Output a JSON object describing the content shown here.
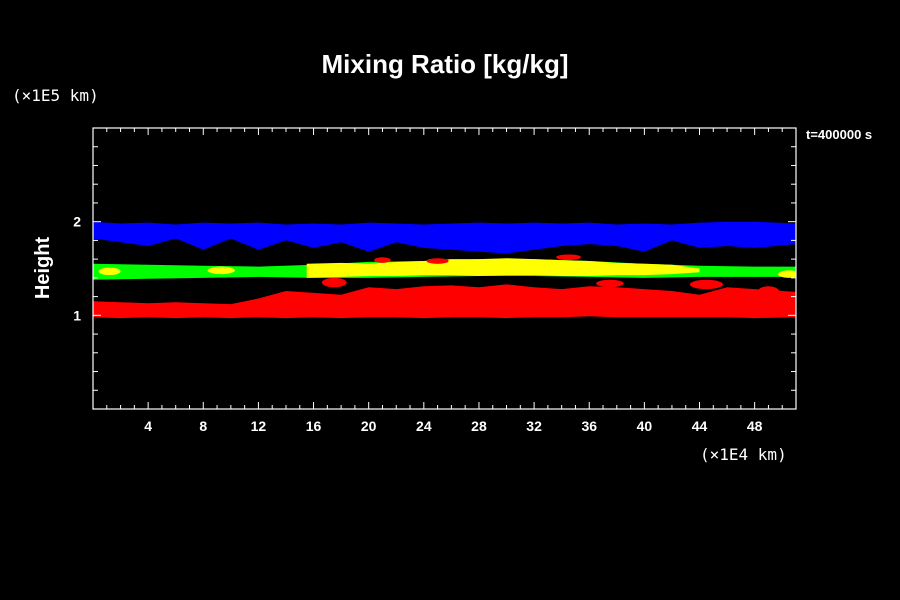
{
  "chart_data": {
    "type": "heatmap",
    "title": "Mixing Ratio [kg/kg]",
    "x_unit": "(×1E4 km)",
    "y_unit": "(×1E5 km)",
    "ylabel": "Height",
    "xlabel": "",
    "time_label": "t=400000 s",
    "xlim": [
      0,
      51
    ],
    "ylim": [
      0,
      3
    ],
    "x_ticks": [
      4,
      8,
      12,
      16,
      20,
      24,
      28,
      32,
      36,
      40,
      44,
      48
    ],
    "y_ticks": [
      1,
      2
    ],
    "grid": false,
    "legend": "none",
    "colors": {
      "background": "#000000",
      "axis": "#ffffff",
      "blue": "#0000ff",
      "green": "#00ff00",
      "yellow": "#ffff00",
      "red": "#ff0000"
    },
    "layers": [
      {
        "color": "blue",
        "x": [
          0,
          2,
          4,
          6,
          8,
          10,
          12,
          14,
          16,
          18,
          20,
          22,
          24,
          26,
          28,
          30,
          32,
          34,
          36,
          38,
          40,
          42,
          44,
          46,
          48,
          51
        ],
        "top": [
          2.0,
          1.98,
          1.99,
          1.97,
          1.99,
          1.98,
          1.99,
          1.97,
          1.98,
          1.97,
          1.99,
          1.98,
          1.97,
          1.98,
          1.99,
          1.98,
          1.99,
          1.98,
          1.99,
          1.97,
          1.98,
          1.97,
          1.99,
          2.0,
          2.0,
          1.98
        ],
        "bottom": [
          1.82,
          1.78,
          1.74,
          1.82,
          1.7,
          1.82,
          1.7,
          1.8,
          1.72,
          1.78,
          1.68,
          1.78,
          1.72,
          1.7,
          1.68,
          1.66,
          1.7,
          1.74,
          1.76,
          1.74,
          1.68,
          1.8,
          1.72,
          1.74,
          1.72,
          1.76
        ]
      },
      {
        "color": "green",
        "x": [
          0,
          4,
          8,
          12,
          16,
          20,
          24,
          28,
          32,
          36,
          40,
          44,
          48,
          51
        ],
        "top": [
          1.55,
          1.54,
          1.53,
          1.52,
          1.54,
          1.57,
          1.58,
          1.6,
          1.6,
          1.58,
          1.55,
          1.53,
          1.52,
          1.52
        ],
        "bottom": [
          1.38,
          1.39,
          1.4,
          1.41,
          1.4,
          1.4,
          1.41,
          1.42,
          1.42,
          1.41,
          1.4,
          1.41,
          1.41,
          1.41
        ]
      },
      {
        "color": "yellow",
        "x": [
          15.5,
          18,
          20,
          22,
          24,
          26,
          28,
          30,
          32,
          34,
          36,
          38,
          40,
          42,
          44
        ],
        "top": [
          1.55,
          1.56,
          1.55,
          1.57,
          1.58,
          1.6,
          1.6,
          1.61,
          1.6,
          1.59,
          1.58,
          1.56,
          1.55,
          1.54,
          1.5
        ],
        "bottom": [
          1.4,
          1.41,
          1.42,
          1.42,
          1.43,
          1.43,
          1.42,
          1.43,
          1.43,
          1.42,
          1.42,
          1.43,
          1.43,
          1.44,
          1.46
        ]
      },
      {
        "color": "red",
        "x": [
          0,
          2,
          4,
          6,
          8,
          10,
          12,
          14,
          16,
          18,
          20,
          22,
          24,
          26,
          28,
          30,
          32,
          34,
          36,
          38,
          40,
          42,
          44,
          46,
          48,
          51
        ],
        "top": [
          1.15,
          1.14,
          1.13,
          1.14,
          1.13,
          1.12,
          1.18,
          1.26,
          1.24,
          1.22,
          1.3,
          1.28,
          1.31,
          1.32,
          1.3,
          1.33,
          1.3,
          1.28,
          1.31,
          1.3,
          1.28,
          1.26,
          1.22,
          1.3,
          1.28,
          1.25
        ],
        "bottom": [
          0.98,
          0.97,
          0.98,
          0.97,
          0.98,
          0.97,
          0.98,
          0.97,
          0.98,
          0.97,
          0.98,
          0.98,
          0.97,
          0.98,
          0.98,
          0.97,
          0.98,
          0.98,
          0.99,
          0.98,
          0.98,
          0.98,
          0.98,
          0.98,
          0.97,
          0.98
        ]
      }
    ],
    "patches": [
      {
        "color": "red",
        "x": 17.5,
        "y": 1.35,
        "rx": 0.9,
        "ry": 0.05
      },
      {
        "color": "red",
        "x": 21,
        "y": 1.59,
        "rx": 0.6,
        "ry": 0.03
      },
      {
        "color": "red",
        "x": 25,
        "y": 1.58,
        "rx": 0.8,
        "ry": 0.03
      },
      {
        "color": "red",
        "x": 34.5,
        "y": 1.62,
        "rx": 0.9,
        "ry": 0.03
      },
      {
        "color": "red",
        "x": 44.5,
        "y": 1.33,
        "rx": 1.2,
        "ry": 0.05
      },
      {
        "color": "red",
        "x": 49,
        "y": 1.25,
        "rx": 0.8,
        "ry": 0.06
      },
      {
        "color": "red",
        "x": 37.5,
        "y": 1.34,
        "rx": 1.0,
        "ry": 0.04
      },
      {
        "color": "yellow",
        "x": 9.3,
        "y": 1.48,
        "rx": 1.0,
        "ry": 0.04
      },
      {
        "color": "yellow",
        "x": 50.5,
        "y": 1.44,
        "rx": 0.8,
        "ry": 0.04
      },
      {
        "color": "yellow",
        "x": 1.2,
        "y": 1.47,
        "rx": 0.8,
        "ry": 0.04
      }
    ]
  }
}
